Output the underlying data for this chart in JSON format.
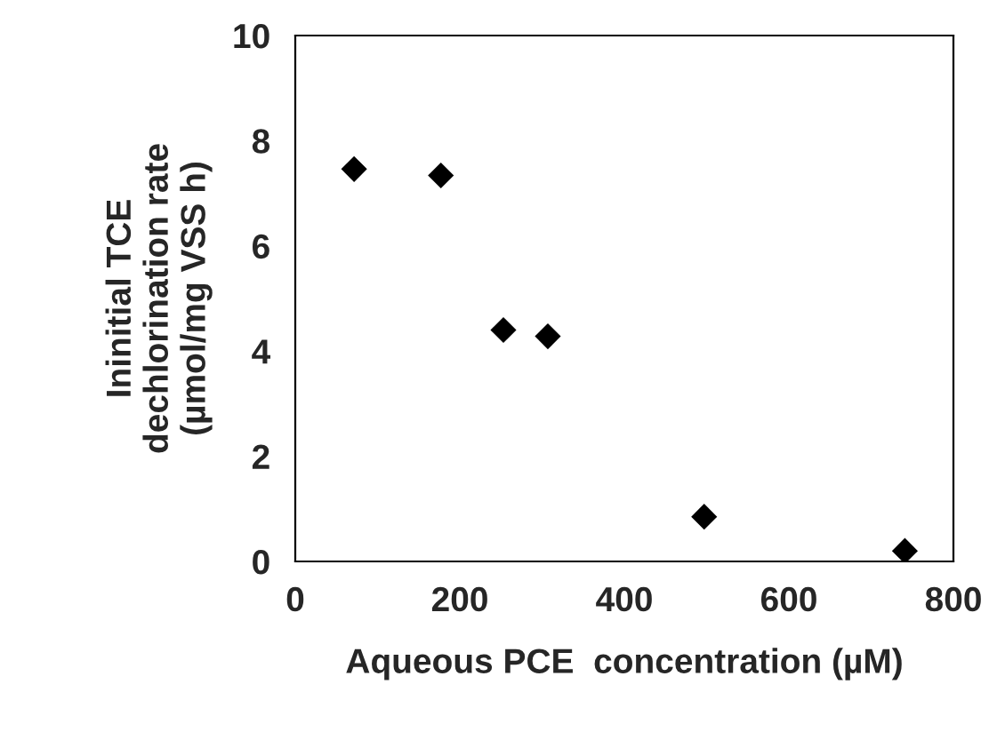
{
  "chart_data": {
    "type": "scatter",
    "xlabel": "Aqueous PCE  concentration (µM)",
    "ylabel": "Ininitial TCE\ndechlorination rate\n(µmol/mg VSS h)",
    "x": [
      71.5,
      177,
      253,
      307,
      497,
      741
    ],
    "series": [
      {
        "color": "#000000",
        "values": [
          7.46,
          7.34,
          4.4,
          4.28,
          0.85,
          0.2
        ]
      }
    ],
    "marker": "diamond",
    "xlim": [
      0,
      800
    ],
    "xticks": [
      0,
      200,
      400,
      600,
      800
    ],
    "ylim": [
      0,
      10
    ],
    "yticks": [
      0,
      2,
      4,
      6,
      8,
      10
    ],
    "grid": false,
    "legend": false
  }
}
